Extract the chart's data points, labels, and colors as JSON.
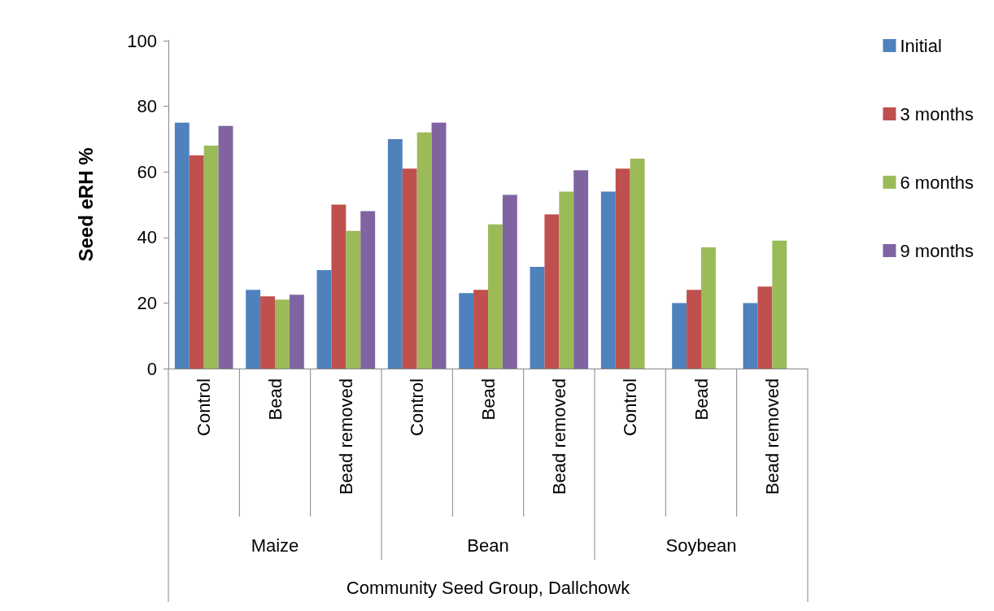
{
  "chart_data": {
    "type": "bar",
    "xlabel": "Community Seed Group, Dallchowk",
    "ylabel": "Seed eRH %",
    "categories": [
      "Control",
      "Bead",
      "Bead removed",
      "Control",
      "Bead",
      "Bead removed",
      "Control",
      "Bead",
      "Bead removed"
    ],
    "annotations": [
      "Maize",
      "Bean",
      "Soybean"
    ],
    "series": [
      {
        "name": "Initial",
        "color": "#4f81bd",
        "values": [
          75,
          24,
          30,
          70,
          23,
          31,
          54,
          20,
          20
        ]
      },
      {
        "name": "3 months",
        "color": "#c0504d",
        "values": [
          65,
          22,
          50,
          61,
          24,
          47,
          61,
          24,
          25
        ]
      },
      {
        "name": "6 months",
        "color": "#9bbb59",
        "values": [
          68,
          21,
          42,
          72,
          44,
          54,
          64,
          37,
          39
        ]
      },
      {
        "name": "9 months",
        "color": "#8064a2",
        "values": [
          74,
          22.5,
          48,
          75,
          53,
          60.5,
          null,
          null,
          null
        ]
      }
    ],
    "ylim": [
      0,
      100
    ],
    "yticks": [
      0,
      20,
      40,
      60,
      80,
      100
    ],
    "grid": false,
    "legend": "right"
  }
}
